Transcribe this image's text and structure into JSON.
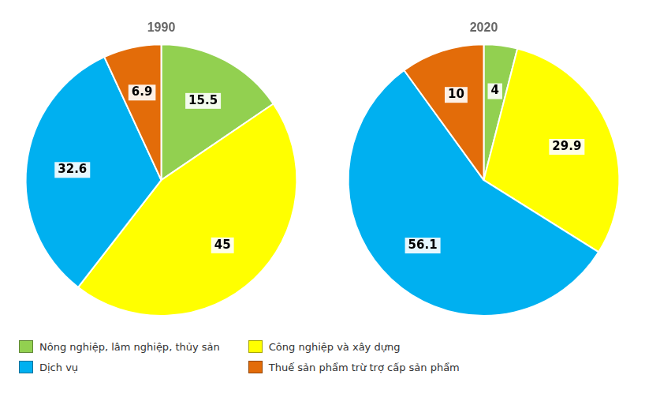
{
  "chart_data": [
    {
      "type": "pie",
      "title": "1990",
      "categories": [
        "Nông nghiệp, lâm nghiệp, thủy sản",
        "Công nghiệp và xây dựng",
        "Dịch vụ",
        "Thuế sản phẩm trừ trợ cấp sản phẩm"
      ],
      "values": [
        15.5,
        45,
        32.6,
        6.9
      ],
      "colors": [
        "#92d050",
        "#ffff00",
        "#00b0f0",
        "#e36c09"
      ],
      "data_labels": true,
      "legend": "lower left"
    },
    {
      "type": "pie",
      "title": "2020",
      "categories": [
        "Nông nghiệp, lâm nghiệp, thủy sản",
        "Công nghiệp và xây dựng",
        "Dịch vụ",
        "Thuế sản phẩm trừ trợ cấp sản phẩm"
      ],
      "values": [
        4,
        29.9,
        56.1,
        10
      ],
      "colors": [
        "#92d050",
        "#ffff00",
        "#00b0f0",
        "#e36c09"
      ],
      "data_labels": true,
      "legend": "lower left"
    }
  ]
}
